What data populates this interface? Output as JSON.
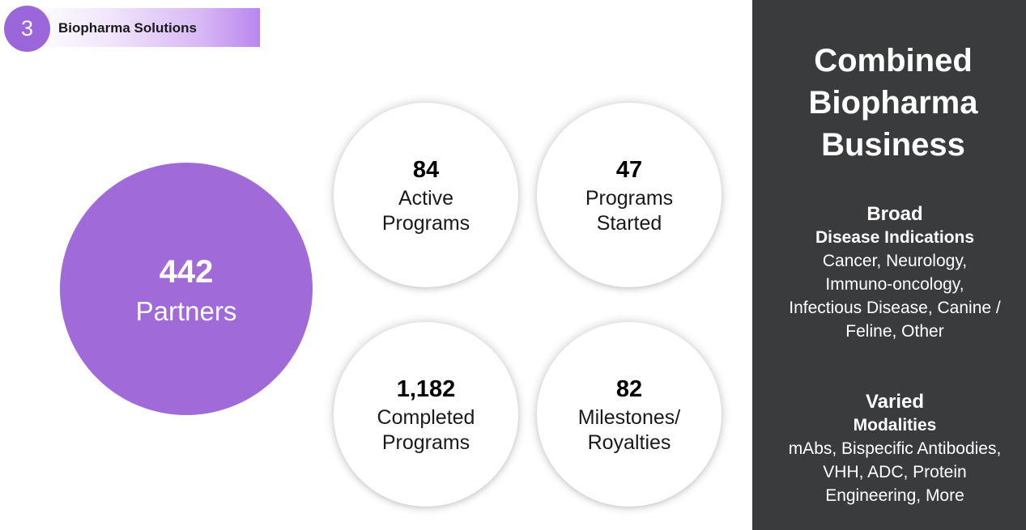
{
  "section": {
    "number": "3",
    "title": "Biopharma Solutions",
    "accent_color": "#9b66d9"
  },
  "partners": {
    "value": "442",
    "label": "Partners",
    "color": "#a06ad8"
  },
  "stats": [
    {
      "value": "84",
      "label_lines": [
        "Active",
        "Programs"
      ]
    },
    {
      "value": "47",
      "label_lines": [
        "Programs",
        "Started"
      ]
    },
    {
      "value": "1,182",
      "label_lines": [
        "Completed",
        "Programs"
      ]
    },
    {
      "value": "82",
      "label_lines": [
        "Milestones/",
        "Royalties"
      ]
    }
  ],
  "panel": {
    "background": "#3a3b3c",
    "heading_lines": [
      "Combined",
      "Biopharma",
      "Business"
    ],
    "groups": [
      {
        "title": "Broad",
        "subtitle": "Disease Indications",
        "body_lines": [
          "Cancer, Neurology,",
          "Immuno-oncology,",
          "Infectious Disease, Canine /",
          "Feline, Other"
        ]
      },
      {
        "title": "Varied",
        "subtitle": "Modalities",
        "body_lines": [
          "mAbs, Bispecific Antibodies,",
          "VHH, ADC, Protein",
          "Engineering, More"
        ]
      }
    ]
  }
}
